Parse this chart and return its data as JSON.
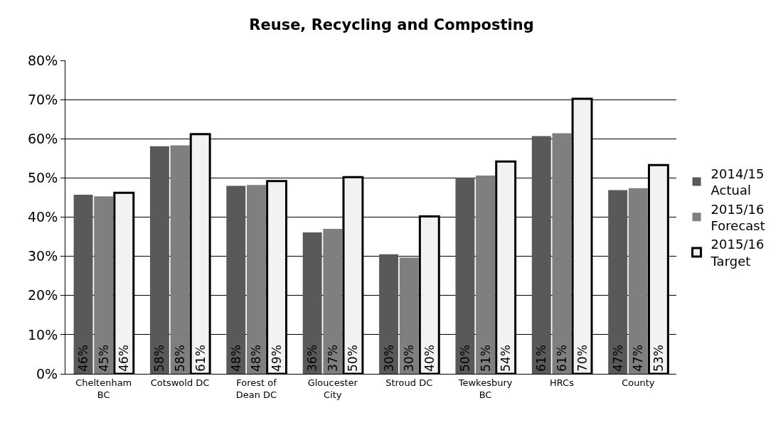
{
  "chart_data": {
    "type": "bar",
    "title": "Reuse, Recycling and Composting",
    "categories": [
      "Cheltenham BC",
      "Cotswold DC",
      "Forest of Dean DC",
      "Gloucester City",
      "Stroud DC",
      "Tewkesbury BC",
      "HRCs",
      "County"
    ],
    "series": [
      {
        "name": "2014/15 Actual",
        "color": "#595959",
        "values": [
          45.7,
          58.1,
          48.0,
          36.1,
          30.5,
          50.1,
          60.7,
          46.9
        ],
        "value_labels": [
          "46%",
          "58%",
          "48%",
          "36%",
          "30%",
          "50%",
          "61%",
          "47%"
        ]
      },
      {
        "name": "2015/16 Forecast",
        "color": "#7f7f7f",
        "values": [
          45.3,
          58.3,
          48.2,
          37.0,
          29.7,
          50.6,
          61.4,
          47.4
        ],
        "value_labels": [
          "45%",
          "58%",
          "48%",
          "37%",
          "30%",
          "51%",
          "61%",
          "47%"
        ]
      },
      {
        "name": "2015/16 Target",
        "color": "#f2f2f2",
        "values": [
          46.2,
          61.2,
          49.2,
          50.2,
          40.2,
          54.2,
          70.2,
          53.3
        ],
        "value_labels": [
          "46%",
          "61%",
          "49%",
          "50%",
          "40%",
          "54%",
          "70%",
          "53%"
        ]
      }
    ],
    "ylim": [
      0,
      80
    ],
    "yticks": [
      {
        "value": 0,
        "label": "0%"
      },
      {
        "value": 10,
        "label": "10%"
      },
      {
        "value": 20,
        "label": "20%"
      },
      {
        "value": 30,
        "label": "30%"
      },
      {
        "value": 40,
        "label": "40%"
      },
      {
        "value": 50,
        "label": "50%"
      },
      {
        "value": 60,
        "label": "60%"
      },
      {
        "value": 70,
        "label": "70%"
      },
      {
        "value": 80,
        "label": "80%"
      }
    ],
    "grid": "y",
    "legend": "right"
  }
}
